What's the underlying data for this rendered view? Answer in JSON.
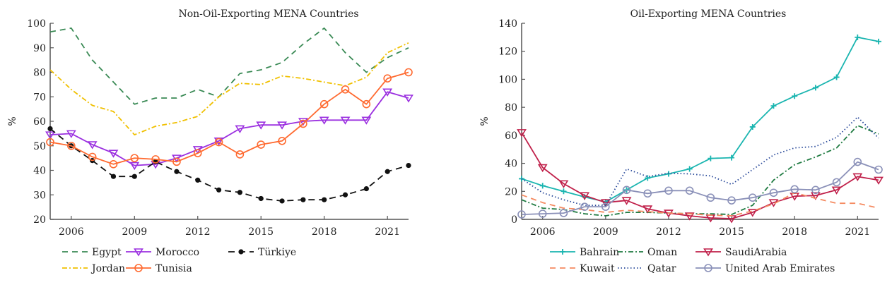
{
  "chart_data": [
    {
      "type": "line",
      "title": "Non-Oil-Exporting MENA Countries",
      "xlabel": "",
      "ylabel": "%",
      "xlim": [
        2005,
        2022
      ],
      "ylim": [
        20,
        100
      ],
      "xticks": [
        2006,
        2009,
        2012,
        2015,
        2018,
        2021
      ],
      "yticks": [
        20,
        30,
        40,
        50,
        60,
        70,
        80,
        90,
        100
      ],
      "x": [
        2005,
        2006,
        2007,
        2008,
        2009,
        2010,
        2011,
        2012,
        2013,
        2014,
        2015,
        2016,
        2017,
        2018,
        2019,
        2020,
        2021,
        2022
      ],
      "legend_position": "bottom",
      "series": [
        {
          "name": "Egypt",
          "color": "#3a8a55",
          "dash": "8,6",
          "marker": "none",
          "values": [
            96.5,
            98,
            85,
            76,
            67,
            69.5,
            69.5,
            73,
            70,
            79.5,
            81,
            84,
            91.5,
            98,
            88,
            80,
            86,
            90
          ]
        },
        {
          "name": "Morocco",
          "color": "#9b30e0",
          "dash": "",
          "marker": "triangle-down",
          "values": [
            54.5,
            55,
            50.5,
            47,
            42,
            42.5,
            45,
            48.5,
            52,
            57,
            58.5,
            58.5,
            60,
            60.5,
            60.5,
            60.5,
            72,
            69.5
          ]
        },
        {
          "name": "Türkiye",
          "color": "#111111",
          "dash": "9,6",
          "marker": "dot",
          "values": [
            57,
            50,
            44,
            37.5,
            37.5,
            43.5,
            39.5,
            36,
            32,
            31,
            28.5,
            27.5,
            28,
            28,
            30,
            32.5,
            39.5,
            42
          ]
        },
        {
          "name": "Jordan",
          "color": "#f0c000",
          "dash": "7,3,2,3",
          "marker": "none",
          "values": [
            81,
            73,
            66.5,
            64,
            54.5,
            58,
            59.5,
            62,
            70,
            75.5,
            75,
            78.5,
            77.5,
            76,
            74.5,
            78,
            88,
            92
          ]
        },
        {
          "name": "Tunisia",
          "color": "#ff6a30",
          "dash": "",
          "marker": "circle",
          "values": [
            51.5,
            50,
            45.5,
            42.5,
            45,
            44.5,
            43.5,
            47,
            51.5,
            46.5,
            50.5,
            52,
            59,
            67,
            73,
            67,
            77.5,
            80
          ]
        }
      ]
    },
    {
      "type": "line",
      "title": "Oil-Exporting MENA Countries",
      "xlabel": "",
      "ylabel": "%",
      "xlim": [
        2005,
        2022
      ],
      "ylim": [
        0,
        140
      ],
      "xticks": [
        2006,
        2009,
        2012,
        2015,
        2018,
        2021
      ],
      "yticks": [
        0,
        20,
        40,
        60,
        80,
        100,
        120,
        140
      ],
      "x": [
        2005,
        2006,
        2007,
        2008,
        2009,
        2010,
        2011,
        2012,
        2013,
        2014,
        2015,
        2016,
        2017,
        2018,
        2019,
        2020,
        2021,
        2022
      ],
      "legend_position": "bottom",
      "series": [
        {
          "name": "Bahrain",
          "color": "#1ab5b0",
          "dash": "",
          "marker": "plus",
          "values": [
            29,
            24,
            20,
            16,
            12.5,
            21,
            29.5,
            32.5,
            36,
            43.5,
            44,
            66,
            81,
            88,
            94,
            101.5,
            130,
            127
          ]
        },
        {
          "name": "Oman",
          "color": "#1e7a40",
          "dash": "7,3,2,3",
          "marker": "none",
          "values": [
            14,
            8,
            7,
            4,
            2.5,
            5,
            5,
            4.5,
            4,
            4,
            3.5,
            10,
            28,
            39,
            44.5,
            51,
            67,
            61
          ]
        },
        {
          "name": "SaudiArabia",
          "color": "#c0204a",
          "dash": "",
          "marker": "triangle-down",
          "values": [
            62,
            37,
            25.5,
            17,
            12,
            13.5,
            7.5,
            4.5,
            2.5,
            1,
            0.5,
            5,
            12,
            16.5,
            17,
            21,
            30.5,
            28
          ]
        },
        {
          "name": "Kuwait",
          "color": "#f58a60",
          "dash": "8,6",
          "marker": "none",
          "values": [
            17.5,
            12,
            8,
            7,
            5,
            6.5,
            5.5,
            4.5,
            4,
            3,
            2.5,
            6,
            11,
            19,
            15,
            11.5,
            11.5,
            8
          ]
        },
        {
          "name": "Qatar",
          "color": "#2a4a9a",
          "dash": "1.5,3",
          "marker": "none",
          "values": [
            29,
            19,
            14,
            10,
            10,
            36,
            30.5,
            33,
            32.5,
            31,
            25,
            35.5,
            46,
            51,
            52,
            58.5,
            73,
            58
          ]
        },
        {
          "name": "United Arab Emirates",
          "color": "#8a90b8",
          "dash": "",
          "marker": "circle",
          "values": [
            3.5,
            4,
            4.5,
            9,
            9,
            21,
            18.5,
            20.5,
            20.5,
            15.5,
            13.5,
            15.5,
            19,
            21.5,
            21,
            26.5,
            41,
            35.5
          ]
        }
      ]
    }
  ]
}
